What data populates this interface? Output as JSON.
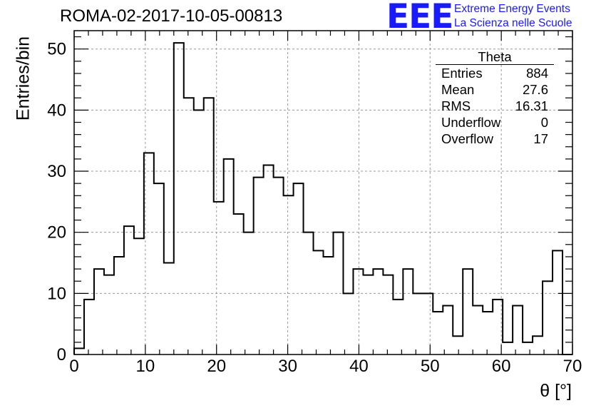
{
  "chart_data": {
    "type": "histogram",
    "title": "ROMA-02-2017-10-05-00813",
    "xlabel": "θ [°]",
    "ylabel": "Entries/bin",
    "xlim": [
      0,
      70
    ],
    "ylim": [
      0,
      53
    ],
    "bin_width": 1.4,
    "xticks": [
      0,
      10,
      20,
      30,
      40,
      50,
      60,
      70
    ],
    "yticks": [
      0,
      10,
      20,
      30,
      40,
      50
    ],
    "grid": true,
    "bin_counts": [
      1,
      9,
      14,
      13,
      16,
      21,
      19,
      33,
      28,
      15,
      51,
      42,
      40,
      42,
      25,
      32,
      23,
      20,
      29,
      31,
      29,
      26,
      28,
      20,
      17,
      16,
      20,
      10,
      14,
      13,
      14,
      13,
      9,
      14,
      10,
      10,
      7,
      8,
      3,
      14,
      8,
      7,
      9,
      2,
      8,
      2,
      3,
      12,
      17,
      0
    ]
  },
  "stats_box": {
    "title": "Theta",
    "rows": [
      {
        "label": "Entries",
        "value": "884"
      },
      {
        "label": "Mean",
        "value": "27.6"
      },
      {
        "label": "RMS",
        "value": "16.31"
      },
      {
        "label": "Underflow",
        "value": "0"
      },
      {
        "label": "Overflow",
        "value": "17"
      }
    ]
  },
  "logo": {
    "mark": "EEE",
    "line1": "Extreme Energy Events",
    "line2": "La Scienza nelle Scuole",
    "color": "#1a1aff"
  }
}
